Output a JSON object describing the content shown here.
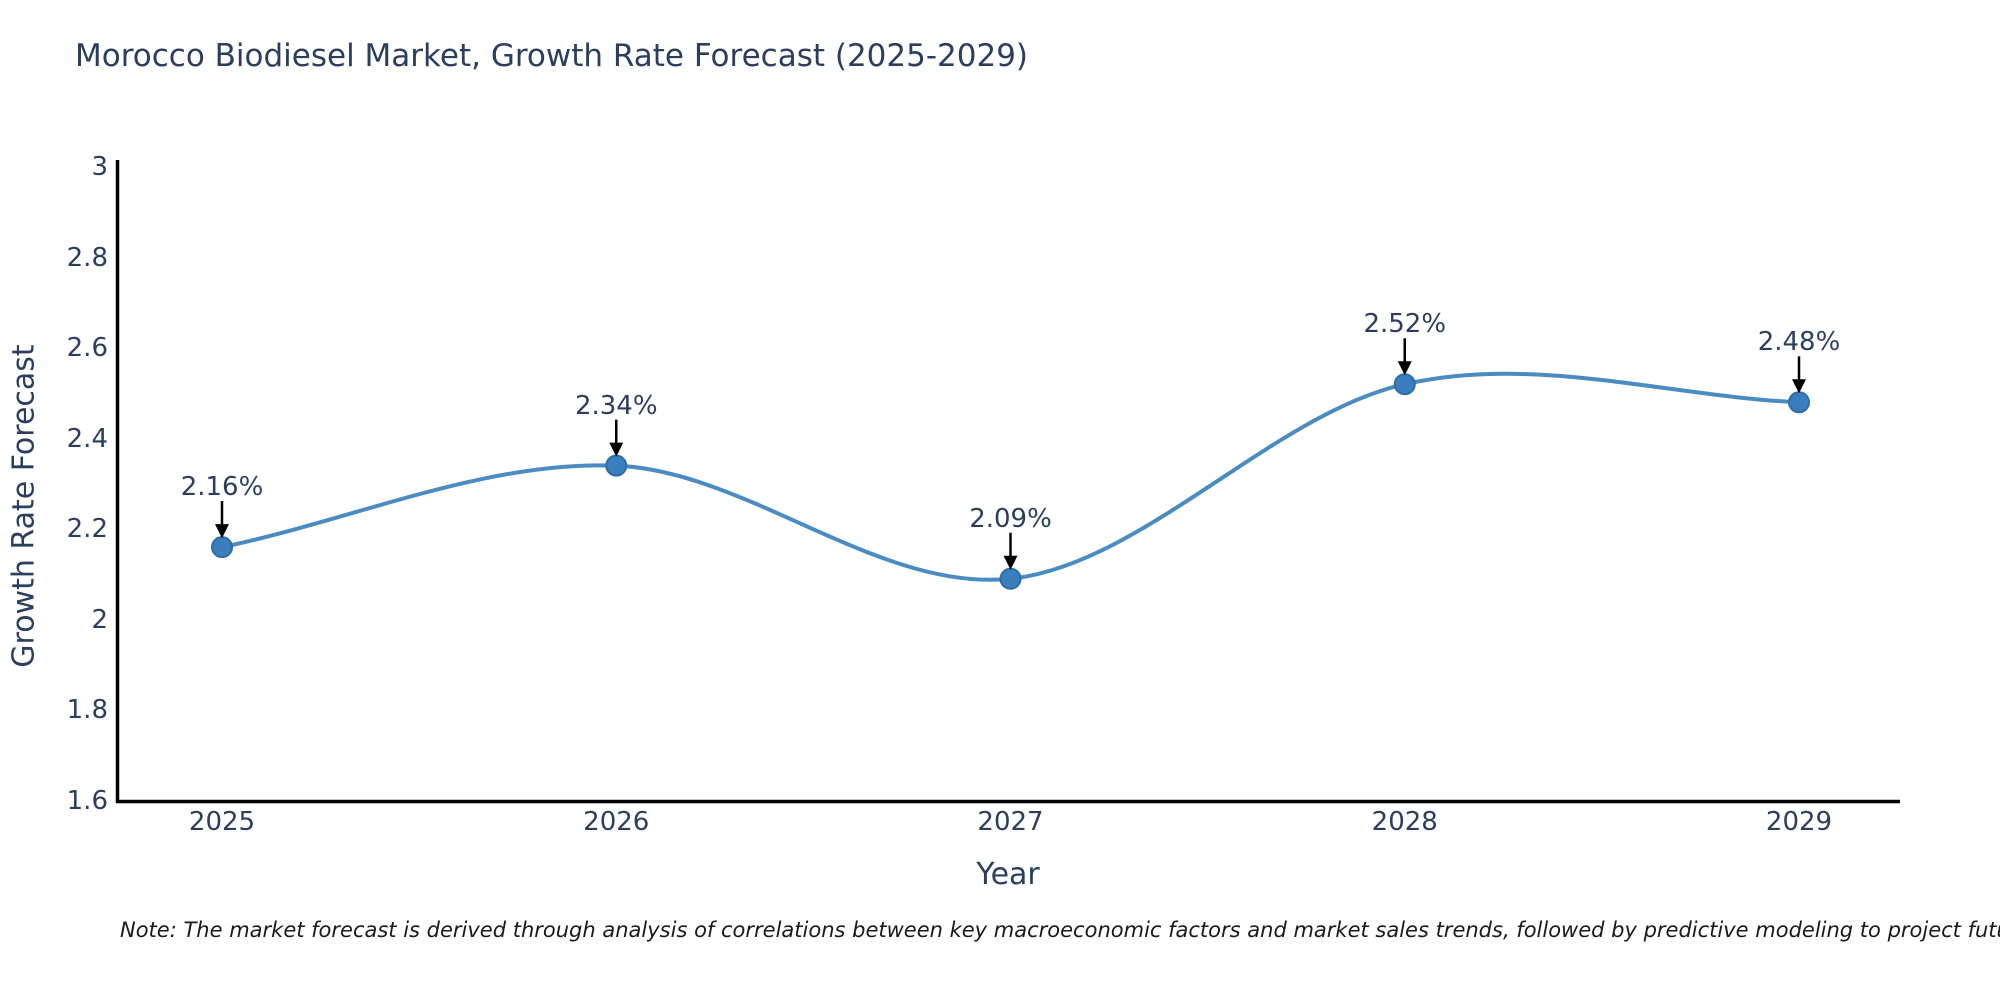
{
  "title": "Morocco Biodiesel Market, Growth Rate Forecast (2025-2029)",
  "note": "Note: The market forecast is derived through analysis of correlations between key macroeconomic factors and market sales trends, followed by predictive modeling to project future sales",
  "chart_data": {
    "type": "line",
    "line_shape": "spline",
    "title": "Morocco Biodiesel Market, Growth Rate Forecast (2025-2029)",
    "xlabel": "Year",
    "ylabel": "Growth Rate Forecast",
    "categories": [
      "2025",
      "2026",
      "2027",
      "2028",
      "2029"
    ],
    "series": [
      {
        "name": "Growth Rate Forecast",
        "values": [
          2.16,
          2.34,
          2.09,
          2.52,
          2.48
        ]
      }
    ],
    "point_labels": [
      "2.16%",
      "2.34%",
      "2.09%",
      "2.52%",
      "2.48%"
    ],
    "ylim": [
      1.6,
      3
    ],
    "y_ticks": [
      3,
      2.8,
      2.6,
      2.4,
      2.2,
      2,
      1.8,
      1.6
    ],
    "grid": false,
    "legend": "none",
    "annotation_arrows": true,
    "colors": {
      "line": "#4a8bc2",
      "marker": "#3a7ebf",
      "marker_edge": "#2e6ca6",
      "axis": "#000000",
      "tick_text": "#2a3f5f",
      "title_text": "#2a3f5f",
      "arrow": "#000000",
      "note_text": "#1a1a1a",
      "background": "#ffffff"
    }
  }
}
